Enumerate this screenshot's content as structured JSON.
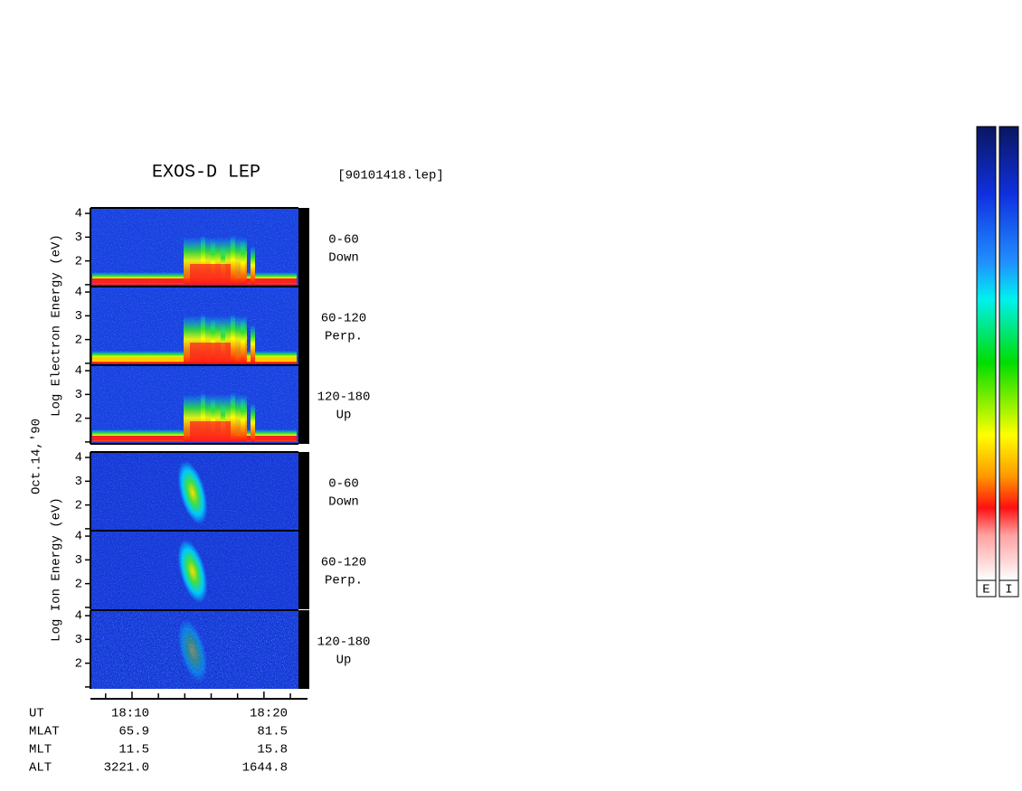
{
  "header": {
    "title": "EXOS-D LEP",
    "file": "[90101418.lep]"
  },
  "axis_labels": {
    "electron": "Log  Electron  Energy  (eV)",
    "date": "Oct.14,'90",
    "ion": "Log  Ion  Energy  (eV)"
  },
  "panels": [
    {
      "species": "electron",
      "pitch_angle": "0-60",
      "direction": "Down"
    },
    {
      "species": "electron",
      "pitch_angle": "60-120",
      "direction": "Perp."
    },
    {
      "species": "electron",
      "pitch_angle": "120-180",
      "direction": "Up"
    },
    {
      "species": "ion",
      "pitch_angle": "0-60",
      "direction": "Down"
    },
    {
      "species": "ion",
      "pitch_angle": "60-120",
      "direction": "Perp."
    },
    {
      "species": "ion",
      "pitch_angle": "120-180",
      "direction": "Up"
    }
  ],
  "energy_axis": {
    "ylim": [
      0.92,
      4.23
    ],
    "yticks": [
      2,
      3,
      4
    ],
    "minor_yticks": [
      1
    ]
  },
  "time_axis": {
    "xlim": [
      6.85,
      23.3
    ],
    "xticks": [
      {
        "value": 10,
        "label": "18:10"
      },
      {
        "value": 20,
        "label": "18:20"
      }
    ],
    "minor_xticks": [
      8,
      12,
      14,
      16,
      18,
      22
    ]
  },
  "orbit_table": {
    "rows": [
      [
        "UT",
        "18:10",
        "18:20"
      ],
      [
        "MLAT",
        "65.9",
        "81.5"
      ],
      [
        "MLT",
        "11.5",
        "15.8"
      ],
      [
        "ALT",
        "3221.0",
        "1644.8"
      ]
    ]
  },
  "colorbars": [
    "E",
    "I"
  ]
}
